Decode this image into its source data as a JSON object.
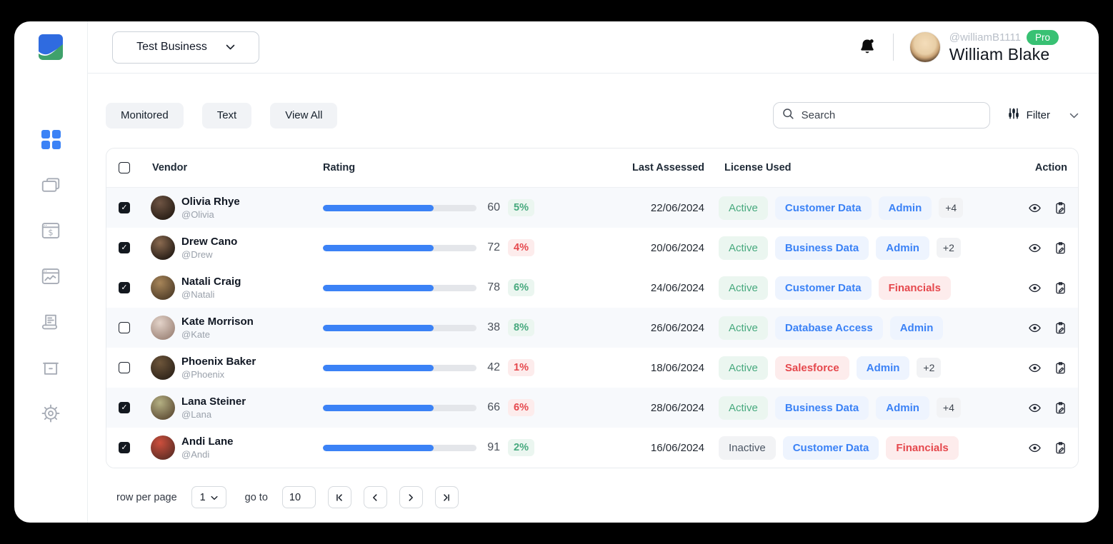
{
  "topbar": {
    "business_selector": "Test Business",
    "user": {
      "handle": "@williamB1111",
      "badge": "Pro",
      "name": "William Blake"
    }
  },
  "sidebar": {
    "items": [
      {
        "name": "dashboard",
        "icon": "grid-icon",
        "active": true
      },
      {
        "name": "cards",
        "icon": "cards-icon",
        "active": false
      },
      {
        "name": "payments",
        "icon": "dollar-window-icon",
        "active": false
      },
      {
        "name": "analytics",
        "icon": "chart-window-icon",
        "active": false
      },
      {
        "name": "invoices",
        "icon": "receipt-icon",
        "active": false
      },
      {
        "name": "archive",
        "icon": "archive-box-icon",
        "active": false
      },
      {
        "name": "settings",
        "icon": "gear-icon",
        "active": false
      }
    ]
  },
  "toolbar": {
    "tabs": [
      {
        "label": "Monitored"
      },
      {
        "label": "Text"
      },
      {
        "label": "View All"
      }
    ],
    "search_placeholder": "Search",
    "filter_label": "Filter"
  },
  "table": {
    "headers": {
      "vendor": "Vendor",
      "rating": "Rating",
      "last_assessed": "Last Assessed",
      "license_used": "License Used",
      "action": "Action"
    },
    "rows": [
      {
        "checked": true,
        "shaded": true,
        "name": "Olivia Rhye",
        "handle": "@Olivia",
        "rating": 60,
        "bar_pct": 72,
        "change": "5%",
        "change_color": "green",
        "last_assessed": "22/06/2024",
        "status": "Active",
        "licenses": [
          {
            "label": "Customer Data",
            "color": "blue"
          },
          {
            "label": "Admin",
            "color": "blue"
          }
        ],
        "extra": "+4",
        "avatar": [
          "#6e5443",
          "#241a12"
        ]
      },
      {
        "checked": true,
        "shaded": false,
        "name": "Drew Cano",
        "handle": "@Drew",
        "rating": 72,
        "bar_pct": 72,
        "change": "4%",
        "change_color": "red",
        "last_assessed": "20/06/2024",
        "status": "Active",
        "licenses": [
          {
            "label": "Business Data",
            "color": "blue"
          },
          {
            "label": "Admin",
            "color": "blue"
          }
        ],
        "extra": "+2",
        "avatar": [
          "#8a6a50",
          "#1f1711"
        ]
      },
      {
        "checked": true,
        "shaded": false,
        "name": "Natali Craig",
        "handle": "@Natali",
        "rating": 78,
        "bar_pct": 72,
        "change": "6%",
        "change_color": "green",
        "last_assessed": "24/06/2024",
        "status": "Active",
        "licenses": [
          {
            "label": "Customer Data",
            "color": "blue"
          },
          {
            "label": "Financials",
            "color": "red"
          }
        ],
        "extra": "",
        "avatar": [
          "#a78559",
          "#4c3a26"
        ]
      },
      {
        "checked": false,
        "shaded": true,
        "name": "Kate Morrison",
        "handle": "@Kate",
        "rating": 38,
        "bar_pct": 72,
        "change": "8%",
        "change_color": "green",
        "last_assessed": "26/06/2024",
        "status": "Active",
        "licenses": [
          {
            "label": "Database Access",
            "color": "blue"
          },
          {
            "label": "Admin",
            "color": "blue"
          }
        ],
        "extra": "",
        "avatar": [
          "#e3d3c9",
          "#9b8276"
        ]
      },
      {
        "checked": false,
        "shaded": false,
        "name": "Phoenix Baker",
        "handle": "@Phoenix",
        "rating": 42,
        "bar_pct": 72,
        "change": "1%",
        "change_color": "red",
        "last_assessed": "18/06/2024",
        "status": "Active",
        "licenses": [
          {
            "label": "Salesforce",
            "color": "red"
          },
          {
            "label": "Admin",
            "color": "blue"
          }
        ],
        "extra": "+2",
        "avatar": [
          "#6d553a",
          "#2b2118"
        ]
      },
      {
        "checked": true,
        "shaded": true,
        "name": "Lana Steiner",
        "handle": "@Lana",
        "rating": 66,
        "bar_pct": 72,
        "change": "6%",
        "change_color": "red",
        "last_assessed": "28/06/2024",
        "status": "Active",
        "licenses": [
          {
            "label": "Business Data",
            "color": "blue"
          },
          {
            "label": "Admin",
            "color": "blue"
          }
        ],
        "extra": "+4",
        "avatar": [
          "#b4b083",
          "#5c4a33"
        ]
      },
      {
        "checked": true,
        "shaded": false,
        "name": "Andi Lane",
        "handle": "@Andi",
        "rating": 91,
        "bar_pct": 72,
        "change": "2%",
        "change_color": "green",
        "last_assessed": "16/06/2024",
        "status": "Inactive",
        "licenses": [
          {
            "label": "Customer Data",
            "color": "blue"
          },
          {
            "label": "Financials",
            "color": "red"
          }
        ],
        "extra": "",
        "avatar": [
          "#cd4f3d",
          "#5a2c24"
        ]
      }
    ]
  },
  "pagination": {
    "rows_per_page_label": "row per page",
    "rows_per_page_value": "1",
    "goto_label": "go to",
    "goto_value": "10"
  },
  "colors": {
    "accent_blue": "#3b82f6",
    "badge_blue_bg": "#eef4fe",
    "badge_blue_text": "#3b82f6",
    "badge_green_bg": "#ebf6f0",
    "badge_green_text": "#47a97e",
    "badge_red_bg": "#fdecec",
    "badge_red_text": "#e5484d",
    "badge_gray_bg": "#f2f3f5",
    "badge_gray_text": "#3f4650",
    "pro_badge_bg": "#38c173",
    "bar_track": "#e4e6ea",
    "row_shaded_bg": "#f7f9fc"
  }
}
